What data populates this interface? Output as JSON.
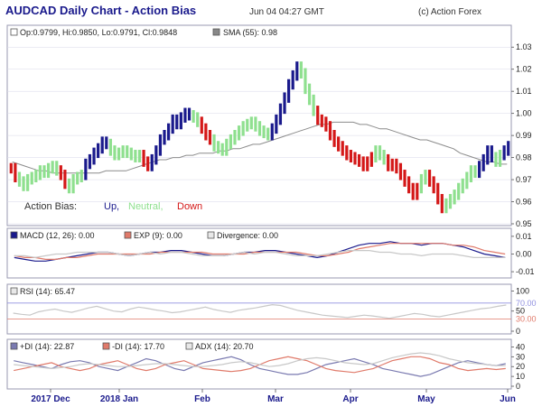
{
  "header": {
    "title": "AUDCAD Daily Chart - Action Bias",
    "timestamp": "Jun 04 04:27 GMT",
    "copyright": "(c) Action Forex"
  },
  "colors": {
    "up": "#1a1a8c",
    "neutral": "#8fe08f",
    "down": "#d41818",
    "sma": "#8c8c8c",
    "macd": "#1a1a8c",
    "signal": "#e07a6a",
    "divergence": "#c8c8c8",
    "rsi": "#c8c8c8",
    "rsi_level": "#e07a6a",
    "rsi_level_hi": "#9090e0",
    "plus_di": "#7a7ab0",
    "minus_di": "#e07a6a",
    "adx": "#c8c8c8",
    "panel_border": "#9a9ab0",
    "grid": "#d8d8e8"
  },
  "legend": {
    "price": "Op:0.9799, Hi:0.9850, Lo:0.9791, Cl:0.9848",
    "sma": "SMA (55): 0.98",
    "macd": "MACD (12, 26): 0.00",
    "exp": "EXP (9): 0.00",
    "divergence": "Divergence: 0.00",
    "rsi": "RSI (14): 65.47",
    "plus_di": "+DI (14): 22.87",
    "minus_di": "-DI (14): 17.70",
    "adx": "ADX (14): 20.70"
  },
  "action_bias": {
    "label": "Action Bias:",
    "up": "Up,",
    "neutral": "Neutral,",
    "down": "Down"
  },
  "x_labels": [
    "2017 Dec",
    "2018 Jan",
    "Feb",
    "Mar",
    "Apr",
    "May",
    "Jun"
  ],
  "chart_data": [
    {
      "type": "ohlc",
      "title": "AUDCAD Daily Chart - Action Bias",
      "ylim": [
        0.95,
        1.035
      ],
      "y_ticks": [
        "1.03",
        "1.02",
        "1.01",
        "1.00",
        "0.99",
        "0.98",
        "0.97",
        "0.96",
        "0.95"
      ],
      "closes": [
        0.975,
        0.971,
        0.969,
        0.967,
        0.97,
        0.971,
        0.972,
        0.974,
        0.973,
        0.975,
        0.976,
        0.974,
        0.972,
        0.968,
        0.966,
        0.97,
        0.971,
        0.972,
        0.977,
        0.979,
        0.982,
        0.984,
        0.987,
        0.986,
        0.983,
        0.981,
        0.982,
        0.983,
        0.982,
        0.981,
        0.98,
        0.981,
        0.978,
        0.976,
        0.979,
        0.983,
        0.988,
        0.99,
        0.993,
        0.997,
        0.995,
        0.998,
        1.0,
        0.999,
        0.998,
        0.996,
        0.993,
        0.99,
        0.988,
        0.985,
        0.984,
        0.983,
        0.986,
        0.988,
        0.99,
        0.992,
        0.994,
        0.995,
        0.996,
        0.994,
        0.992,
        0.991,
        0.99,
        0.993,
        0.997,
        1.002,
        1.007,
        1.013,
        1.017,
        1.021,
        1.018,
        1.011,
        1.006,
        1.001,
        0.997,
        0.996,
        0.994,
        0.99,
        0.987,
        0.985,
        0.983,
        0.981,
        0.98,
        0.979,
        0.978,
        0.976,
        0.978,
        0.98,
        0.983,
        0.981,
        0.979,
        0.976,
        0.977,
        0.975,
        0.972,
        0.969,
        0.966,
        0.963,
        0.966,
        0.97,
        0.972,
        0.969,
        0.966,
        0.961,
        0.957,
        0.959,
        0.961,
        0.963,
        0.966,
        0.968,
        0.971,
        0.974,
        0.973,
        0.976,
        0.979,
        0.983,
        0.98,
        0.978,
        0.981,
        0.983,
        0.985
      ],
      "bias": [
        "D",
        "D",
        "N",
        "N",
        "N",
        "N",
        "N",
        "N",
        "N",
        "N",
        "N",
        "N",
        "D",
        "D",
        "N",
        "N",
        "N",
        "N",
        "U",
        "U",
        "U",
        "U",
        "U",
        "U",
        "N",
        "N",
        "N",
        "N",
        "N",
        "N",
        "N",
        "N",
        "D",
        "D",
        "U",
        "U",
        "U",
        "U",
        "U",
        "U",
        "U",
        "U",
        "U",
        "U",
        "N",
        "N",
        "D",
        "D",
        "D",
        "N",
        "N",
        "N",
        "N",
        "N",
        "N",
        "N",
        "N",
        "N",
        "N",
        "N",
        "N",
        "N",
        "N",
        "U",
        "U",
        "U",
        "U",
        "U",
        "U",
        "U",
        "N",
        "N",
        "N",
        "N",
        "D",
        "D",
        "D",
        "D",
        "D",
        "D",
        "D",
        "D",
        "D",
        "D",
        "D",
        "D",
        "D",
        "D",
        "N",
        "N",
        "N",
        "D",
        "D",
        "D",
        "D",
        "D",
        "D",
        "D",
        "D",
        "N",
        "N",
        "D",
        "D",
        "D",
        "D",
        "N",
        "N",
        "N",
        "N",
        "N",
        "N",
        "N",
        "N",
        "U",
        "U",
        "U",
        "U",
        "N",
        "N",
        "U",
        "U"
      ],
      "sma": [
        0.978,
        0.977,
        0.976,
        0.975,
        0.974,
        0.974,
        0.973,
        0.973,
        0.973,
        0.973,
        0.973,
        0.973,
        0.973,
        0.973,
        0.974,
        0.974,
        0.974,
        0.974,
        0.975,
        0.976,
        0.977,
        0.978,
        0.979,
        0.979,
        0.98,
        0.98,
        0.981,
        0.981,
        0.982,
        0.982,
        0.982,
        0.983,
        0.983,
        0.984,
        0.984,
        0.985,
        0.986,
        0.986,
        0.987,
        0.988,
        0.989,
        0.99,
        0.991,
        0.992,
        0.993,
        0.994,
        0.995,
        0.995,
        0.996,
        0.996,
        0.996,
        0.996,
        0.995,
        0.995,
        0.994,
        0.993,
        0.993,
        0.992,
        0.991,
        0.99,
        0.989,
        0.988,
        0.988,
        0.987,
        0.986,
        0.985,
        0.984,
        0.982,
        0.981,
        0.98,
        0.979,
        0.978,
        0.978,
        0.977,
        0.977
      ]
    },
    {
      "type": "line",
      "title": "MACD",
      "ylim": [
        -0.012,
        0.013
      ],
      "y_ticks": [
        "0.01",
        "0.00",
        "-0.01"
      ],
      "series": [
        {
          "name": "MACD (12, 26)",
          "values": [
            -0.002,
            -0.003,
            -0.004,
            -0.004,
            -0.003,
            -0.002,
            -0.001,
            0.0,
            0.001,
            0.001,
            0.0,
            -0.001,
            0.0,
            0.001,
            0.001,
            0.002,
            0.002,
            0.001,
            0.0,
            -0.001,
            -0.001,
            0.0,
            0.001,
            0.001,
            0.002,
            0.002,
            0.001,
            0.0,
            -0.001,
            -0.002,
            -0.001,
            0.001,
            0.003,
            0.005,
            0.006,
            0.006,
            0.007,
            0.006,
            0.006,
            0.005,
            0.006,
            0.006,
            0.005,
            0.004,
            0.002,
            0.0,
            -0.001,
            -0.002
          ]
        },
        {
          "name": "EXP (9)",
          "values": [
            -0.001,
            -0.002,
            -0.002,
            -0.003,
            -0.003,
            -0.002,
            -0.002,
            -0.001,
            0.0,
            0.0,
            0.0,
            0.0,
            0.0,
            0.0,
            0.001,
            0.001,
            0.001,
            0.001,
            0.001,
            0.0,
            0.0,
            0.0,
            0.0,
            0.001,
            0.001,
            0.001,
            0.001,
            0.001,
            0.0,
            -0.001,
            -0.001,
            0.0,
            0.001,
            0.003,
            0.004,
            0.005,
            0.006,
            0.006,
            0.006,
            0.006,
            0.006,
            0.006,
            0.005,
            0.005,
            0.004,
            0.002,
            0.001,
            0.0
          ]
        },
        {
          "name": "Divergence",
          "values": [
            -0.001,
            -0.001,
            -0.002,
            -0.001,
            0.0,
            0.0,
            0.001,
            0.001,
            0.001,
            0.001,
            0.0,
            -0.001,
            0.0,
            0.001,
            0.0,
            0.001,
            0.001,
            0.0,
            -0.001,
            -0.001,
            -0.001,
            0.0,
            0.001,
            0.0,
            0.001,
            0.001,
            0.0,
            -0.001,
            -0.001,
            -0.001,
            0.0,
            0.001,
            0.002,
            0.002,
            0.002,
            0.001,
            0.001,
            0.0,
            0.0,
            -0.001,
            0.0,
            0.0,
            0.0,
            -0.001,
            -0.002,
            -0.002,
            -0.002,
            -0.002
          ]
        }
      ]
    },
    {
      "type": "line",
      "title": "RSI",
      "ylim": [
        0,
        110
      ],
      "y_ticks": [
        "100",
        "50",
        "0"
      ],
      "levels": [
        "70.00",
        "30.00"
      ],
      "series": [
        {
          "name": "RSI (14)",
          "values": [
            45,
            42,
            40,
            48,
            52,
            55,
            50,
            47,
            52,
            58,
            62,
            56,
            50,
            48,
            55,
            60,
            57,
            53,
            50,
            46,
            48,
            52,
            56,
            60,
            54,
            50,
            47,
            52,
            55,
            58,
            62,
            66,
            64,
            58,
            52,
            48,
            44,
            40,
            38,
            36,
            34,
            37,
            40,
            38,
            35,
            32,
            36,
            40,
            44,
            42,
            38,
            36,
            40,
            44,
            48,
            52,
            56,
            58,
            62,
            65
          ]
        }
      ]
    },
    {
      "type": "line",
      "title": "ADX",
      "ylim": [
        0,
        45
      ],
      "y_ticks": [
        "40",
        "30",
        "20",
        "10",
        "0"
      ],
      "series": [
        {
          "name": "+DI (14)",
          "values": [
            26,
            24,
            22,
            20,
            18,
            22,
            25,
            26,
            24,
            20,
            18,
            16,
            20,
            24,
            28,
            26,
            22,
            18,
            16,
            20,
            24,
            26,
            28,
            30,
            27,
            22,
            18,
            16,
            14,
            12,
            12,
            14,
            18,
            22,
            24,
            26,
            28,
            25,
            22,
            18,
            16,
            14,
            12,
            10,
            12,
            16,
            20,
            24,
            26,
            24,
            22,
            21,
            23
          ]
        },
        {
          "name": "-DI (14)",
          "values": [
            16,
            18,
            20,
            22,
            24,
            20,
            18,
            16,
            18,
            22,
            24,
            26,
            22,
            18,
            16,
            18,
            22,
            24,
            26,
            22,
            18,
            17,
            16,
            15,
            16,
            18,
            22,
            26,
            28,
            30,
            28,
            26,
            22,
            18,
            16,
            15,
            14,
            16,
            18,
            22,
            26,
            28,
            30,
            30,
            28,
            24,
            22,
            18,
            16,
            17,
            18,
            17,
            18
          ]
        },
        {
          "name": "ADX (14)",
          "values": [
            22,
            21,
            20,
            19,
            18,
            19,
            20,
            22,
            23,
            22,
            21,
            20,
            20,
            21,
            22,
            23,
            23,
            22,
            21,
            20,
            20,
            21,
            22,
            24,
            25,
            24,
            22,
            20,
            21,
            23,
            26,
            28,
            29,
            28,
            26,
            24,
            23,
            22,
            23,
            26,
            29,
            31,
            33,
            34,
            33,
            31,
            28,
            26,
            24,
            23,
            22,
            21,
            21
          ]
        }
      ]
    }
  ]
}
